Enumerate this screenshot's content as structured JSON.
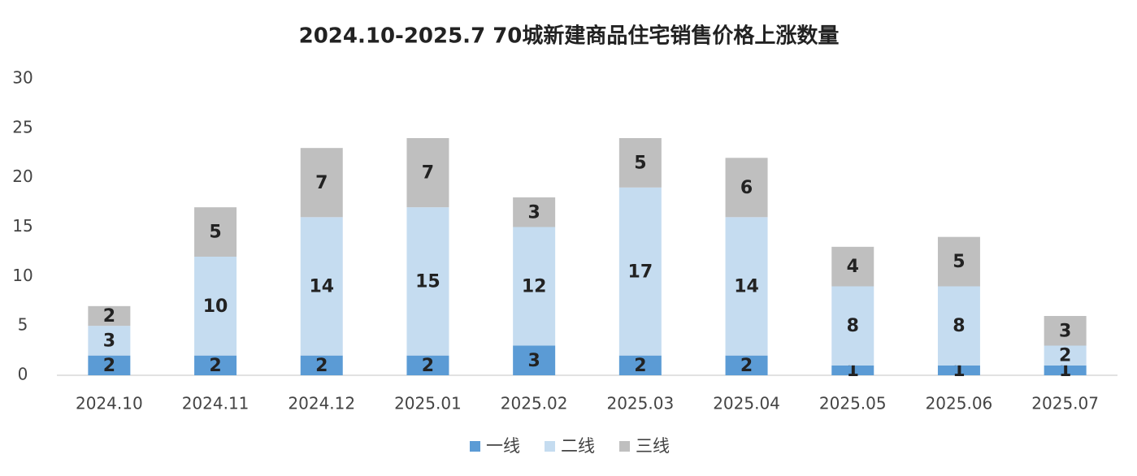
{
  "chart_data": {
    "type": "stacked_bar",
    "title": "2024.10-2025.7 70城新建商品住宅销售价格上涨数量",
    "categories": [
      "2024.10",
      "2024.11",
      "2024.12",
      "2025.01",
      "2025.02",
      "2025.03",
      "2025.04",
      "2025.05",
      "2025.06",
      "2025.07"
    ],
    "series": [
      {
        "name": "一线",
        "color": "#5b9bd5",
        "values": [
          2,
          2,
          2,
          2,
          3,
          2,
          2,
          1,
          1,
          1
        ]
      },
      {
        "name": "二线",
        "color": "#c5dcf0",
        "values": [
          3,
          10,
          14,
          15,
          12,
          17,
          14,
          8,
          8,
          2
        ]
      },
      {
        "name": "三线",
        "color": "#bfbfbf",
        "values": [
          2,
          5,
          7,
          7,
          3,
          5,
          6,
          4,
          5,
          3
        ]
      }
    ],
    "ylim": [
      0,
      30
    ],
    "yticks": [
      0,
      5,
      10,
      15,
      20,
      25,
      30
    ],
    "grid": false,
    "legend": "bottom"
  }
}
